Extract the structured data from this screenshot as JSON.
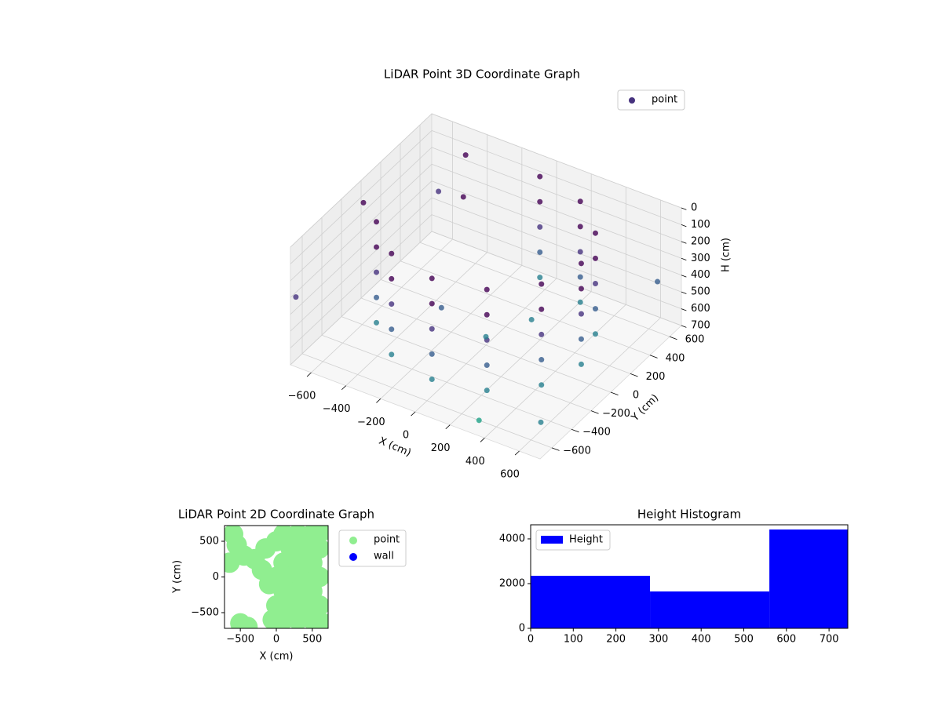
{
  "chart_data": [
    {
      "type": "scatter3d",
      "title": "LiDAR Point 3D Coordinate Graph",
      "xlabel": "X (cm)",
      "ylabel": "Y (cm)",
      "zlabel": "H (cm)",
      "xlim": [
        -720,
        720
      ],
      "ylim": [
        -720,
        720
      ],
      "zlim": [
        700,
        0
      ],
      "xticks": [
        {
          "value": -600,
          "label": "−600"
        },
        {
          "value": -400,
          "label": "−400"
        },
        {
          "value": -200,
          "label": "−200"
        },
        0,
        200,
        400,
        600
      ],
      "yticks": [
        {
          "value": -600,
          "label": "−600"
        },
        {
          "value": -400,
          "label": "−400"
        },
        {
          "value": -200,
          "label": "−200"
        },
        0,
        200,
        400,
        600
      ],
      "zticks": [
        0,
        100,
        200,
        300,
        400,
        500,
        600,
        700
      ],
      "grid": true,
      "legend": "upper right",
      "colormap": "viridis",
      "series": [
        {
          "name": "point",
          "color": "#46327e",
          "x": [
            -476,
            -476,
            -476,
            -476,
            -476,
            -275,
            -275,
            -275,
            -275,
            -275,
            0,
            0,
            0,
            0,
            0,
            275,
            275,
            275,
            275,
            275,
            476,
            476,
            476,
            476,
            476,
            550,
            550,
            550,
            550,
            550,
            476,
            476,
            476,
            476,
            476,
            275,
            275,
            275,
            275,
            275,
            0,
            0,
            0,
            0,
            0,
            -300,
            -500,
            -650,
            150,
            0,
            -200,
            300,
            600,
            -700,
            650,
            -400
          ],
          "y": [
            -275,
            -275,
            -275,
            -275,
            -275,
            -476,
            -476,
            -476,
            -476,
            -476,
            -550,
            -550,
            -550,
            -550,
            -550,
            -476,
            -476,
            -476,
            -476,
            -476,
            -275,
            -275,
            -275,
            -275,
            -275,
            0,
            0,
            0,
            0,
            0,
            275,
            275,
            275,
            275,
            275,
            476,
            476,
            476,
            476,
            476,
            550,
            550,
            550,
            550,
            550,
            300,
            400,
            -100,
            200,
            0,
            -100,
            -600,
            -500,
            -700,
            600,
            500
          ],
          "z": [
            0,
            150,
            300,
            450,
            600,
            0,
            150,
            300,
            450,
            600,
            0,
            150,
            300,
            450,
            600,
            0,
            150,
            300,
            450,
            600,
            0,
            150,
            300,
            450,
            600,
            0,
            150,
            300,
            450,
            600,
            0,
            150,
            300,
            450,
            600,
            0,
            150,
            300,
            450,
            600,
            0,
            150,
            300,
            450,
            600,
            100,
            200,
            50,
            600,
            650,
            500,
            700,
            650,
            300,
            400,
            0
          ]
        }
      ]
    },
    {
      "type": "scatter",
      "title": "LiDAR Point 2D Coordinate Graph",
      "xlabel": "X (cm)",
      "ylabel": "Y (cm)",
      "xlim": [
        -720,
        720
      ],
      "ylim": [
        -720,
        720
      ],
      "xticks": [
        {
          "value": -500,
          "label": "−500"
        },
        0,
        500
      ],
      "yticks": [
        {
          "value": -500,
          "label": "−500"
        },
        0,
        500
      ],
      "legend": "outside upper right",
      "series": [
        {
          "name": "point",
          "color": "#90ee90",
          "x": [
            -600,
            -550,
            -450,
            -650,
            -300,
            -200,
            -150,
            -100,
            0,
            0,
            0,
            -50,
            -500,
            -400,
            100,
            100,
            100,
            100,
            200,
            200,
            200,
            300,
            300,
            300,
            300,
            400,
            400,
            400,
            500,
            500,
            500,
            500,
            600,
            600,
            600,
            650,
            650
          ],
          "y": [
            600,
            450,
            300,
            200,
            250,
            100,
            400,
            -100,
            500,
            0,
            -400,
            -600,
            -650,
            -700,
            600,
            200,
            -200,
            -600,
            400,
            0,
            -400,
            600,
            200,
            -200,
            -600,
            400,
            0,
            -400,
            600,
            200,
            -200,
            -600,
            400,
            0,
            -400,
            650,
            -650
          ]
        },
        {
          "name": "wall",
          "color": "#0000ff",
          "x": [],
          "y": []
        }
      ]
    },
    {
      "type": "hist",
      "title": "Height Histogram",
      "xlim": [
        0,
        744
      ],
      "ylim": [
        0,
        4630
      ],
      "xticks": [
        0,
        100,
        200,
        300,
        400,
        500,
        600,
        700
      ],
      "yticks": [
        0,
        2000,
        4000
      ],
      "legend": "upper left",
      "series": [
        {
          "name": "Height",
          "color": "#0000ff",
          "bins": [
            0,
            280,
            560,
            744
          ],
          "values": [
            2350,
            1650,
            4420
          ]
        }
      ]
    }
  ]
}
